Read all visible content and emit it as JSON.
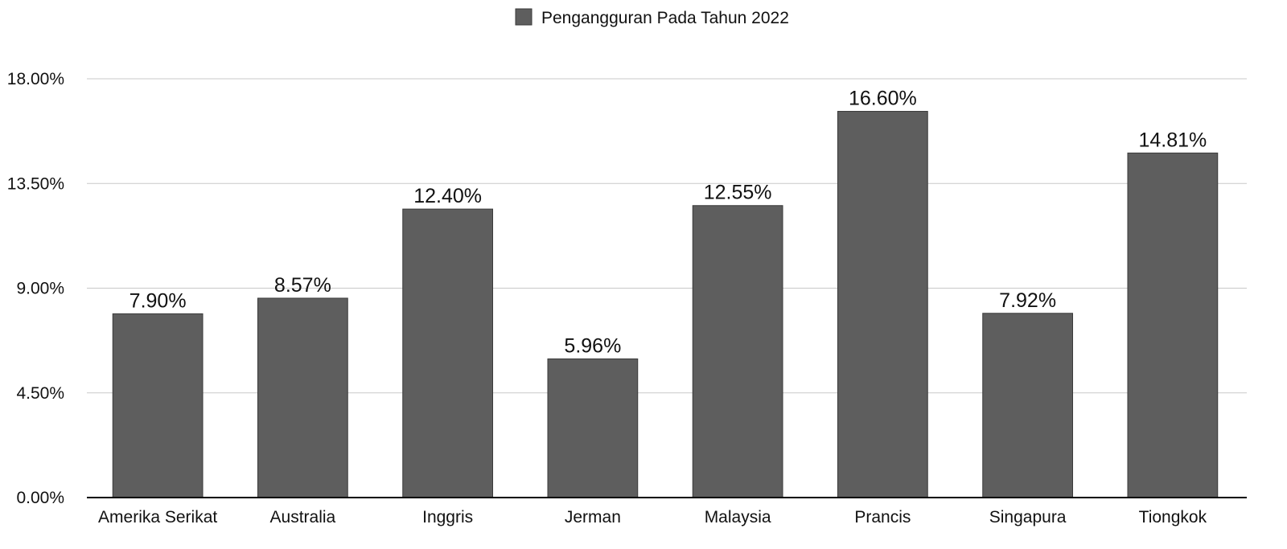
{
  "chart_data": {
    "type": "bar",
    "categories": [
      "Amerika Serikat",
      "Australia",
      "Inggris",
      "Jerman",
      "Malaysia",
      "Prancis",
      "Singapura",
      "Tiongkok"
    ],
    "series": [
      {
        "name": "Pengangguran Pada Tahun 2022",
        "values": [
          7.9,
          8.57,
          12.4,
          5.96,
          12.55,
          16.6,
          7.92,
          14.81
        ],
        "data_labels": [
          "7.90%",
          "8.57%",
          "12.40%",
          "5.96%",
          "12.55%",
          "16.60%",
          "7.92%",
          "14.81%"
        ]
      }
    ],
    "title": "",
    "xlabel": "",
    "ylabel": "",
    "ylim": [
      0,
      18
    ],
    "yticks": [
      0,
      4.5,
      9,
      13.5,
      18
    ],
    "ytick_labels": [
      "0.00%",
      "4.50%",
      "9.00%",
      "13.50%",
      "18.00%"
    ],
    "grid": true,
    "legend_position": "top-center",
    "colors": {
      "bar": "#5e5e5e",
      "bar_stroke": "#3a3a3a",
      "grid": "#c8c8c8",
      "axis": "#000000",
      "text": "#111111"
    }
  }
}
